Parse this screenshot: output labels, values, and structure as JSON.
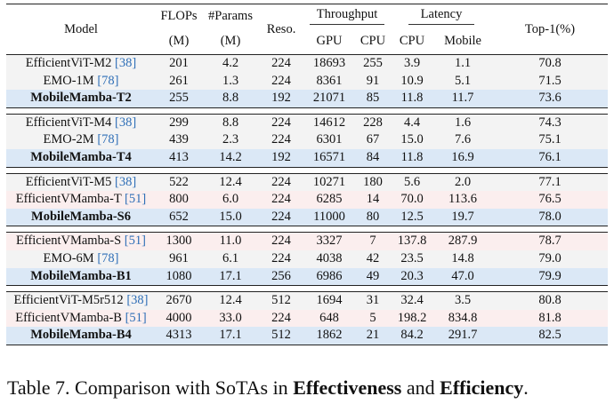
{
  "header": {
    "model": "Model",
    "flops": "FLOPs",
    "flops_unit": "(M)",
    "params": "#Params",
    "params_unit": "(M)",
    "reso": "Reso.",
    "throughput": "Throughput",
    "latency": "Latency",
    "gpu": "GPU",
    "cpu_tp": "CPU",
    "cpu_lat": "CPU",
    "mobile": "Mobile",
    "top1": "Top-1(%)"
  },
  "groups": [
    {
      "style": "grey",
      "rows": [
        {
          "name": "EfficientViT-M2 ",
          "cite": "[38]",
          "flops": "201",
          "params": "4.2",
          "reso": "224",
          "gpu": "18693",
          "cpu": "255",
          "lat_cpu": "3.9",
          "mobile": "1.1",
          "top1": "70.8"
        },
        {
          "name": "EMO-1M ",
          "cite": "[78]",
          "flops": "261",
          "params": "1.3",
          "reso": "224",
          "gpu": "8361",
          "cpu": "91",
          "lat_cpu": "10.9",
          "mobile": "5.1",
          "top1": "71.5"
        },
        {
          "name": "MobileMamba-T2",
          "cite": "",
          "flops": "255",
          "params": "8.8",
          "reso": "192",
          "gpu": "21071",
          "cpu": "85",
          "lat_cpu": "11.8",
          "mobile": "11.7",
          "top1": "73.6",
          "ours": true
        }
      ]
    },
    {
      "style": "grey",
      "rows": [
        {
          "name": "EfficientViT-M4 ",
          "cite": "[38]",
          "flops": "299",
          "params": "8.8",
          "reso": "224",
          "gpu": "14612",
          "cpu": "228",
          "lat_cpu": "4.4",
          "mobile": "1.6",
          "top1": "74.3"
        },
        {
          "name": "EMO-2M ",
          "cite": "[78]",
          "flops": "439",
          "params": "2.3",
          "reso": "224",
          "gpu": "6301",
          "cpu": "67",
          "lat_cpu": "15.0",
          "mobile": "7.6",
          "top1": "75.1"
        },
        {
          "name": "MobileMamba-T4",
          "cite": "",
          "flops": "413",
          "params": "14.2",
          "reso": "192",
          "gpu": "16571",
          "cpu": "84",
          "lat_cpu": "11.8",
          "mobile": "16.9",
          "top1": "76.1",
          "ours": true
        }
      ]
    },
    {
      "style": "mixed",
      "rows": [
        {
          "name": "EfficientViT-M5 ",
          "cite": "[38]",
          "flops": "522",
          "params": "12.4",
          "reso": "224",
          "gpu": "10271",
          "cpu": "180",
          "lat_cpu": "5.6",
          "mobile": "2.0",
          "top1": "77.1",
          "bg": "grey"
        },
        {
          "name": "EfficientVMamba-T ",
          "cite": "[51]",
          "flops": "800",
          "params": "6.0",
          "reso": "224",
          "gpu": "6285",
          "cpu": "14",
          "lat_cpu": "70.0",
          "mobile": "113.6",
          "top1": "76.5",
          "bg": "pink"
        },
        {
          "name": "MobileMamba-S6",
          "cite": "",
          "flops": "652",
          "params": "15.0",
          "reso": "224",
          "gpu": "11000",
          "cpu": "80",
          "lat_cpu": "12.5",
          "mobile": "19.7",
          "top1": "78.0",
          "ours": true
        }
      ]
    },
    {
      "style": "mixed",
      "rows": [
        {
          "name": "EfficientVMamba-S ",
          "cite": "[51]",
          "flops": "1300",
          "params": "11.0",
          "reso": "224",
          "gpu": "3327",
          "cpu": "7",
          "lat_cpu": "137.8",
          "mobile": "287.9",
          "top1": "78.7",
          "bg": "pink"
        },
        {
          "name": "EMO-6M ",
          "cite": "[78]",
          "flops": "961",
          "params": "6.1",
          "reso": "224",
          "gpu": "4038",
          "cpu": "42",
          "lat_cpu": "23.5",
          "mobile": "14.8",
          "top1": "79.0",
          "bg": "grey"
        },
        {
          "name": "MobileMamba-B1",
          "cite": "",
          "flops": "1080",
          "params": "17.1",
          "reso": "256",
          "gpu": "6986",
          "cpu": "49",
          "lat_cpu": "20.3",
          "mobile": "47.0",
          "top1": "79.9",
          "ours": true
        }
      ]
    },
    {
      "style": "mixed",
      "rows": [
        {
          "name": "EfficientViT-M5r512 ",
          "cite": "[38]",
          "flops": "2670",
          "params": "12.4",
          "reso": "512",
          "gpu": "1694",
          "cpu": "31",
          "lat_cpu": "32.4",
          "mobile": "3.5",
          "top1": "80.8",
          "bg": "grey"
        },
        {
          "name": "EfficientVMamba-B ",
          "cite": "[51]",
          "flops": "4000",
          "params": "33.0",
          "reso": "224",
          "gpu": "648",
          "cpu": "5",
          "lat_cpu": "198.2",
          "mobile": "834.8",
          "top1": "81.8",
          "bg": "pink"
        },
        {
          "name": "MobileMamba-B4",
          "cite": "",
          "flops": "4313",
          "params": "17.1",
          "reso": "512",
          "gpu": "1862",
          "cpu": "21",
          "lat_cpu": "84.2",
          "mobile": "291.7",
          "top1": "82.5",
          "ours": true
        }
      ]
    }
  ],
  "caption": {
    "prefix": "Table 7. Comparison with SoTAs in ",
    "bold1": "Effectiveness",
    "middle": " and ",
    "bold2": "Efficiency",
    "suffix": "."
  }
}
